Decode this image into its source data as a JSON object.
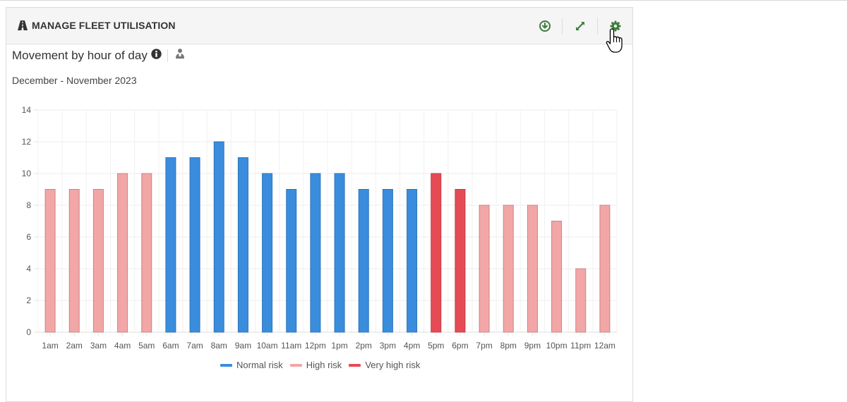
{
  "panel": {
    "title": "MANAGE FLEET UTILISATION"
  },
  "icons": {
    "title": "road-icon",
    "download": "download-icon",
    "expand": "expand-icon",
    "settings": "gear-icon",
    "info": "info-icon",
    "user": "user-icon",
    "cursor": "hand-cursor-icon"
  },
  "chart_header": {
    "title": "Movement by hour of day",
    "date_range": "December - November 2023"
  },
  "colors": {
    "accent": "#3e7d3e",
    "normal": "#3a8ddd",
    "high": "#f2a6a6",
    "very_high": "#e64b55"
  },
  "chart_data": {
    "type": "bar",
    "title": "Movement by hour of day",
    "xlabel": "",
    "ylabel": "",
    "ylim": [
      0,
      14
    ],
    "yticks": [
      0,
      2,
      4,
      6,
      8,
      10,
      12,
      14
    ],
    "grid": true,
    "legend_position": "bottom",
    "categories": [
      "1am",
      "2am",
      "3am",
      "4am",
      "5am",
      "6am",
      "7am",
      "8am",
      "9am",
      "10am",
      "11am",
      "12pm",
      "1pm",
      "2pm",
      "3pm",
      "4pm",
      "5pm",
      "6pm",
      "7pm",
      "8pm",
      "9pm",
      "10pm",
      "11pm",
      "12am"
    ],
    "values": [
      9,
      9,
      9,
      10,
      10,
      11,
      11,
      12,
      11,
      10,
      9,
      10,
      10,
      9,
      9,
      9,
      10,
      9,
      8,
      8,
      8,
      7,
      4,
      8
    ],
    "risk": [
      "high",
      "high",
      "high",
      "high",
      "high",
      "normal",
      "normal",
      "normal",
      "normal",
      "normal",
      "normal",
      "normal",
      "normal",
      "normal",
      "normal",
      "normal",
      "very_high",
      "very_high",
      "high",
      "high",
      "high",
      "high",
      "high",
      "high"
    ],
    "series": [
      {
        "name": "Normal risk",
        "key": "normal",
        "color": "#3a8ddd"
      },
      {
        "name": "High risk",
        "key": "high",
        "color": "#f2a6a6"
      },
      {
        "name": "Very high risk",
        "key": "very_high",
        "color": "#e64b55"
      }
    ]
  }
}
